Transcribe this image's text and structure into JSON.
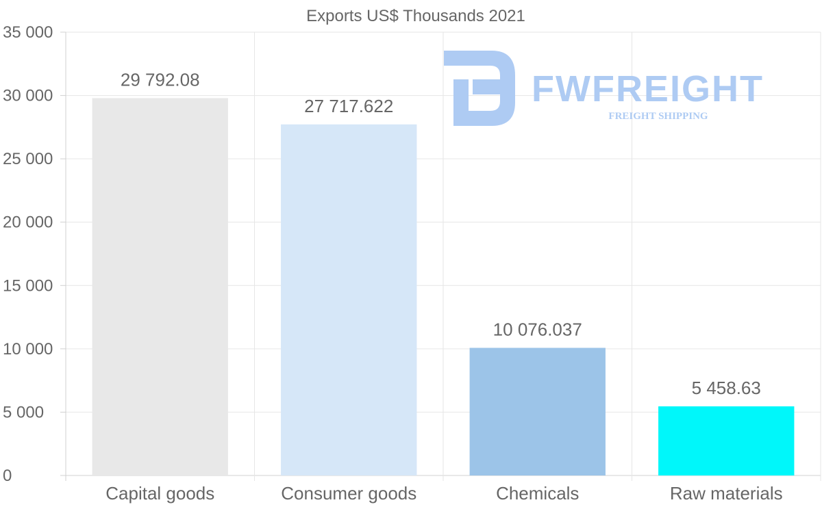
{
  "watermark": {
    "brand": "FWFREIGHT",
    "tagline": "FREIGHT SHIPPING"
  },
  "chart_data": {
    "type": "bar",
    "title": "Exports US$ Thousands 2021",
    "categories": [
      "Capital goods",
      "Consumer goods",
      "Chemicals",
      "Raw materials"
    ],
    "values": [
      29792.08,
      27717.622,
      10076.037,
      5458.63
    ],
    "value_labels": [
      "29 792.08",
      "27 717.622",
      "10 076.037",
      "5 458.63"
    ],
    "colors": [
      "#e8e8e8",
      "#d6e7f8",
      "#9cc4e8",
      "#00f7fa"
    ],
    "ylim": [
      0,
      35000
    ],
    "yticks": [
      0,
      5000,
      10000,
      15000,
      20000,
      25000,
      30000,
      35000
    ],
    "ytick_labels": [
      "0",
      "5 000",
      "10 000",
      "15 000",
      "20 000",
      "25 000",
      "30 000",
      "35 000"
    ],
    "xlabel": "",
    "ylabel": "",
    "grid": true,
    "legend": "none"
  }
}
